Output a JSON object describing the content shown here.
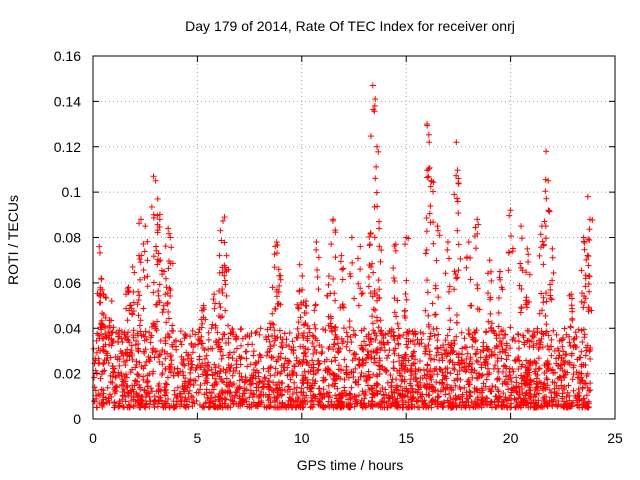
{
  "chart_data": {
    "type": "scatter",
    "title": "Day 179 of 2014, Rate Of TEC Index for receiver onrj",
    "xlabel": "GPS time / hours",
    "ylabel": "ROTI / TECUs",
    "xlim": [
      0,
      25
    ],
    "ylim": [
      0,
      0.16
    ],
    "xticks": [
      0,
      5,
      10,
      15,
      20,
      25
    ],
    "xtick_labels": [
      "0",
      "5",
      "10",
      "15",
      "20",
      "25"
    ],
    "yticks": [
      0,
      0.02,
      0.04,
      0.06,
      0.08,
      0.1,
      0.12,
      0.14,
      0.16
    ],
    "ytick_labels": [
      "0",
      "0.02",
      "0.04",
      "0.06",
      "0.08",
      "0.1",
      "0.12",
      "0.14",
      "0.16"
    ],
    "grid": true,
    "marker": "plus",
    "color": "#ff0000",
    "series": [
      {
        "name": "ROTI",
        "sample_points": [
          [
            0.3,
            0.076
          ],
          [
            0.4,
            0.062
          ],
          [
            0.5,
            0.055
          ],
          [
            0.9,
            0.052
          ],
          [
            1.7,
            0.058
          ],
          [
            1.9,
            0.067
          ],
          [
            2.2,
            0.072
          ],
          [
            2.3,
            0.088
          ],
          [
            2.5,
            0.085
          ],
          [
            2.9,
            0.107
          ],
          [
            3.0,
            0.105
          ],
          [
            3.1,
            0.097
          ],
          [
            3.2,
            0.088
          ],
          [
            3.4,
            0.065
          ],
          [
            3.6,
            0.084
          ],
          [
            3.7,
            0.08
          ],
          [
            5.3,
            0.05
          ],
          [
            5.8,
            0.055
          ],
          [
            6.1,
            0.083
          ],
          [
            6.3,
            0.089
          ],
          [
            6.4,
            0.072
          ],
          [
            8.6,
            0.058
          ],
          [
            8.8,
            0.078
          ],
          [
            8.9,
            0.066
          ],
          [
            9.9,
            0.068
          ],
          [
            10.2,
            0.052
          ],
          [
            10.7,
            0.078
          ],
          [
            11.3,
            0.063
          ],
          [
            11.5,
            0.088
          ],
          [
            11.9,
            0.072
          ],
          [
            12.4,
            0.08
          ],
          [
            12.8,
            0.076
          ],
          [
            13.3,
            0.082
          ],
          [
            13.4,
            0.147
          ],
          [
            13.5,
            0.138
          ],
          [
            13.6,
            0.12
          ],
          [
            13.7,
            0.087
          ],
          [
            14.5,
            0.077
          ],
          [
            15.0,
            0.08
          ],
          [
            16.0,
            0.13
          ],
          [
            16.1,
            0.122
          ],
          [
            16.2,
            0.105
          ],
          [
            16.5,
            0.085
          ],
          [
            17.0,
            0.078
          ],
          [
            17.4,
            0.122
          ],
          [
            17.5,
            0.104
          ],
          [
            18.0,
            0.078
          ],
          [
            18.4,
            0.088
          ],
          [
            19.0,
            0.07
          ],
          [
            19.5,
            0.065
          ],
          [
            20.0,
            0.092
          ],
          [
            20.5,
            0.085
          ],
          [
            20.8,
            0.075
          ],
          [
            21.5,
            0.085
          ],
          [
            21.7,
            0.118
          ],
          [
            21.8,
            0.105
          ],
          [
            22.0,
            0.075
          ],
          [
            22.9,
            0.055
          ],
          [
            23.5,
            0.08
          ],
          [
            23.7,
            0.098
          ],
          [
            23.8,
            0.088
          ]
        ],
        "baseline_band": [
          0.005,
          0.04
        ]
      }
    ]
  }
}
